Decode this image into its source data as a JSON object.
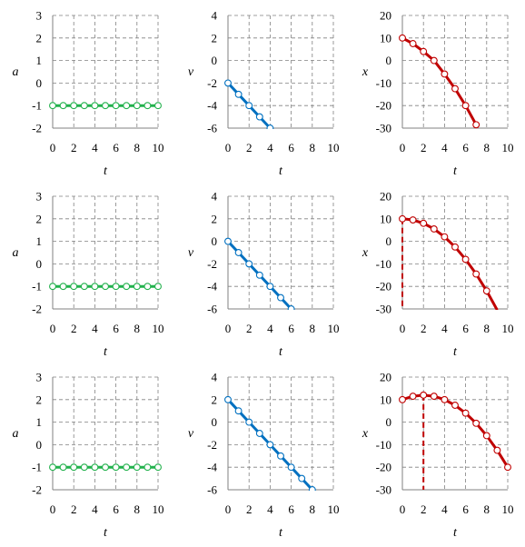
{
  "colors": {
    "acceleration": "#22b14c",
    "velocity": "#0070c0",
    "position": "#c00000",
    "marker_fill": "#ffffff",
    "grid": "#808080"
  },
  "chart_data": [
    {
      "type": "line",
      "row": 0,
      "col": 0,
      "xlabel": "t",
      "ylabel": "a",
      "xlim": [
        0,
        10
      ],
      "ylim": [
        -2,
        3
      ],
      "xticks": [
        0,
        2,
        4,
        6,
        8,
        10
      ],
      "yticks": [
        -2,
        -1,
        0,
        1,
        2,
        3
      ],
      "color_key": "acceleration",
      "grid": true,
      "series": [
        {
          "x": [
            0,
            1,
            2,
            3,
            4,
            5,
            6,
            7,
            8,
            9,
            10
          ],
          "y": [
            -1,
            -1,
            -1,
            -1,
            -1,
            -1,
            -1,
            -1,
            -1,
            -1,
            -1
          ]
        }
      ]
    },
    {
      "type": "line",
      "row": 0,
      "col": 1,
      "xlabel": "t",
      "ylabel": "v",
      "xlim": [
        0,
        10
      ],
      "ylim": [
        -6,
        4
      ],
      "xticks": [
        0,
        2,
        4,
        6,
        8,
        10
      ],
      "yticks": [
        -6,
        -4,
        -2,
        0,
        2,
        4
      ],
      "color_key": "velocity",
      "grid": true,
      "series": [
        {
          "x": [
            0,
            1,
            2,
            3,
            4
          ],
          "y": [
            -2,
            -3,
            -4,
            -5,
            -6
          ]
        }
      ]
    },
    {
      "type": "line",
      "row": 0,
      "col": 2,
      "xlabel": "t",
      "ylabel": "x",
      "xlim": [
        0,
        10
      ],
      "ylim": [
        -30,
        20
      ],
      "xticks": [
        0,
        2,
        4,
        6,
        8,
        10
      ],
      "yticks": [
        -30,
        -20,
        -10,
        0,
        10,
        20
      ],
      "color_key": "position",
      "grid": true,
      "series": [
        {
          "x": [
            0,
            1,
            2,
            3,
            4,
            5,
            6,
            7
          ],
          "y": [
            10,
            7.5,
            4,
            0,
            -6,
            -12.5,
            -20,
            -28.5
          ]
        }
      ]
    },
    {
      "type": "line",
      "row": 1,
      "col": 0,
      "xlabel": "t",
      "ylabel": "a",
      "xlim": [
        0,
        10
      ],
      "ylim": [
        -2,
        3
      ],
      "xticks": [
        0,
        2,
        4,
        6,
        8,
        10
      ],
      "yticks": [
        -2,
        -1,
        0,
        1,
        2,
        3
      ],
      "color_key": "acceleration",
      "grid": true,
      "series": [
        {
          "x": [
            0,
            1,
            2,
            3,
            4,
            5,
            6,
            7,
            8,
            9,
            10
          ],
          "y": [
            -1,
            -1,
            -1,
            -1,
            -1,
            -1,
            -1,
            -1,
            -1,
            -1,
            -1
          ]
        }
      ]
    },
    {
      "type": "line",
      "row": 1,
      "col": 1,
      "xlabel": "t",
      "ylabel": "v",
      "xlim": [
        0,
        10
      ],
      "ylim": [
        -6,
        4
      ],
      "xticks": [
        0,
        2,
        4,
        6,
        8,
        10
      ],
      "yticks": [
        -6,
        -4,
        -2,
        0,
        2,
        4
      ],
      "color_key": "velocity",
      "grid": true,
      "series": [
        {
          "x": [
            0,
            1,
            2,
            3,
            4,
            5,
            6
          ],
          "y": [
            0,
            -1,
            -2,
            -3,
            -4,
            -5,
            -6
          ]
        }
      ]
    },
    {
      "type": "line",
      "row": 1,
      "col": 2,
      "xlabel": "t",
      "ylabel": "x",
      "xlim": [
        0,
        10
      ],
      "ylim": [
        -30,
        20
      ],
      "xticks": [
        0,
        2,
        4,
        6,
        8,
        10
      ],
      "yticks": [
        -30,
        -20,
        -10,
        0,
        10,
        20
      ],
      "color_key": "position",
      "grid": true,
      "series": [
        {
          "x": [
            0,
            1,
            2,
            3,
            4,
            5,
            6,
            7,
            8,
            9
          ],
          "y": [
            10,
            9.5,
            8,
            5.5,
            2,
            -2.5,
            -8,
            -14.5,
            -22,
            -30.5
          ]
        }
      ],
      "marker_visible_count": 9,
      "dashed_vertical": {
        "x": 0,
        "from_y": 10,
        "to_y": -30
      }
    },
    {
      "type": "line",
      "row": 2,
      "col": 0,
      "xlabel": "t",
      "ylabel": "a",
      "xlim": [
        0,
        10
      ],
      "ylim": [
        -2,
        3
      ],
      "xticks": [
        0,
        2,
        4,
        6,
        8,
        10
      ],
      "yticks": [
        -2,
        -1,
        0,
        1,
        2,
        3
      ],
      "color_key": "acceleration",
      "grid": true,
      "series": [
        {
          "x": [
            0,
            1,
            2,
            3,
            4,
            5,
            6,
            7,
            8,
            9,
            10
          ],
          "y": [
            -1,
            -1,
            -1,
            -1,
            -1,
            -1,
            -1,
            -1,
            -1,
            -1,
            -1
          ]
        }
      ]
    },
    {
      "type": "line",
      "row": 2,
      "col": 1,
      "xlabel": "t",
      "ylabel": "v",
      "xlim": [
        0,
        10
      ],
      "ylim": [
        -6,
        4
      ],
      "xticks": [
        0,
        2,
        4,
        6,
        8,
        10
      ],
      "yticks": [
        -6,
        -4,
        -2,
        0,
        2,
        4
      ],
      "color_key": "velocity",
      "grid": true,
      "series": [
        {
          "x": [
            0,
            1,
            2,
            3,
            4,
            5,
            6,
            7,
            8
          ],
          "y": [
            2,
            1,
            0,
            -1,
            -2,
            -3,
            -4,
            -5,
            -6
          ]
        }
      ]
    },
    {
      "type": "line",
      "row": 2,
      "col": 2,
      "xlabel": "t",
      "ylabel": "x",
      "xlim": [
        0,
        10
      ],
      "ylim": [
        -30,
        20
      ],
      "xticks": [
        0,
        2,
        4,
        6,
        8,
        10
      ],
      "yticks": [
        -30,
        -20,
        -10,
        0,
        10,
        20
      ],
      "color_key": "position",
      "grid": true,
      "series": [
        {
          "x": [
            0,
            1,
            2,
            3,
            4,
            5,
            6,
            7,
            8,
            9,
            10
          ],
          "y": [
            10,
            11.5,
            12,
            11.5,
            10,
            7.5,
            4,
            -0.5,
            -6,
            -12.5,
            -20
          ]
        }
      ],
      "dashed_vertical": {
        "x": 2,
        "from_y": 12,
        "to_y": -30
      }
    }
  ]
}
